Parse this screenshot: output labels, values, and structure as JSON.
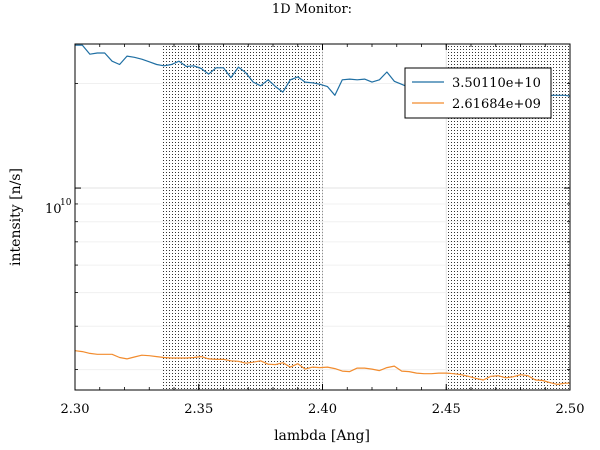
{
  "chart_data": {
    "type": "line",
    "title": "1D Monitor:",
    "xlabel": "lambda [Ang]",
    "ylabel": "intensity [n/s]",
    "xlim": [
      2.3,
      2.5
    ],
    "ylim": [
      2620000000.0,
      26000000000.0
    ],
    "yscale": "log",
    "grid": true,
    "legend_position": "top-right",
    "x_ticks": [
      "2.30",
      "2.35",
      "2.40",
      "2.45",
      "2.50"
    ],
    "y_tick_base": "10",
    "y_tick_exponent": "10",
    "shaded_ranges": [
      [
        2.335,
        2.4
      ],
      [
        2.45,
        2.5
      ]
    ],
    "x": [
      2.3,
      2.303,
      2.306,
      2.309,
      2.312,
      2.315,
      2.318,
      2.321,
      2.324,
      2.327,
      2.33,
      2.333,
      2.336,
      2.339,
      2.342,
      2.345,
      2.348,
      2.351,
      2.354,
      2.357,
      2.36,
      2.363,
      2.366,
      2.369,
      2.372,
      2.375,
      2.378,
      2.381,
      2.384,
      2.387,
      2.39,
      2.393,
      2.396,
      2.399,
      2.402,
      2.405,
      2.408,
      2.411,
      2.414,
      2.417,
      2.42,
      2.423,
      2.426,
      2.429,
      2.432,
      2.435,
      2.438,
      2.441,
      2.444,
      2.447,
      2.45,
      2.453,
      2.456,
      2.459,
      2.462,
      2.465,
      2.468,
      2.471,
      2.474,
      2.477,
      2.48,
      2.483,
      2.486,
      2.489,
      2.492,
      2.495,
      2.498,
      2.5
    ],
    "series": [
      {
        "name": "3.50110e+10",
        "color": "#1f6fa3",
        "values": [
          25800000000.0,
          25800000000.0,
          24300000000.0,
          24500000000.0,
          24500000000.0,
          23200000000.0,
          22700000000.0,
          24000000000.0,
          23800000000.0,
          23500000000.0,
          23100000000.0,
          22700000000.0,
          22500000000.0,
          22700000000.0,
          23200000000.0,
          22400000000.0,
          22500000000.0,
          22100000000.0,
          21300000000.0,
          22200000000.0,
          22200000000.0,
          20800000000.0,
          22300000000.0,
          21500000000.0,
          20200000000.0,
          19700000000.0,
          20500000000.0,
          19600000000.0,
          18900000000.0,
          20500000000.0,
          20900000000.0,
          20200000000.0,
          20100000000.0,
          19900000000.0,
          19600000000.0,
          18500000000.0,
          20500000000.0,
          20600000000.0,
          20500000000.0,
          20600000000.0,
          20200000000.0,
          20500000000.0,
          21600000000.0,
          20300000000.0,
          19900000000.0,
          19500000000.0,
          19400000000.0,
          19500000000.0,
          18800000000.0,
          18800000000.0,
          18700000000.0,
          18500000000.0,
          18500000000.0,
          18600000000.0,
          18200000000.0,
          18500000000.0,
          18500000000.0,
          18200000000.0,
          18300000000.0,
          18400000000.0,
          18600000000.0,
          18500000000.0,
          18600000000.0,
          18700000000.0,
          18500000000.0,
          18500000000.0,
          18500000000.0,
          18400000000.0
        ]
      },
      {
        "name": "2.61684e+09",
        "color": "#f28c2e",
        "values": [
          3400000000.0,
          3380000000.0,
          3340000000.0,
          3320000000.0,
          3320000000.0,
          3320000000.0,
          3250000000.0,
          3220000000.0,
          3260000000.0,
          3300000000.0,
          3290000000.0,
          3270000000.0,
          3250000000.0,
          3240000000.0,
          3240000000.0,
          3240000000.0,
          3250000000.0,
          3270000000.0,
          3220000000.0,
          3210000000.0,
          3210000000.0,
          3180000000.0,
          3170000000.0,
          3130000000.0,
          3150000000.0,
          3180000000.0,
          3110000000.0,
          3100000000.0,
          3140000000.0,
          3050000000.0,
          3120000000.0,
          3010000000.0,
          3050000000.0,
          3040000000.0,
          3050000000.0,
          3020000000.0,
          2970000000.0,
          2960000000.0,
          3030000000.0,
          3030000000.0,
          3010000000.0,
          2980000000.0,
          3040000000.0,
          3070000000.0,
          2970000000.0,
          2960000000.0,
          2930000000.0,
          2920000000.0,
          2920000000.0,
          2930000000.0,
          2930000000.0,
          2920000000.0,
          2900000000.0,
          2870000000.0,
          2830000000.0,
          2800000000.0,
          2870000000.0,
          2880000000.0,
          2840000000.0,
          2860000000.0,
          2900000000.0,
          2880000000.0,
          2800000000.0,
          2790000000.0,
          2750000000.0,
          2720000000.0,
          2740000000.0,
          2740000000.0
        ]
      }
    ]
  }
}
